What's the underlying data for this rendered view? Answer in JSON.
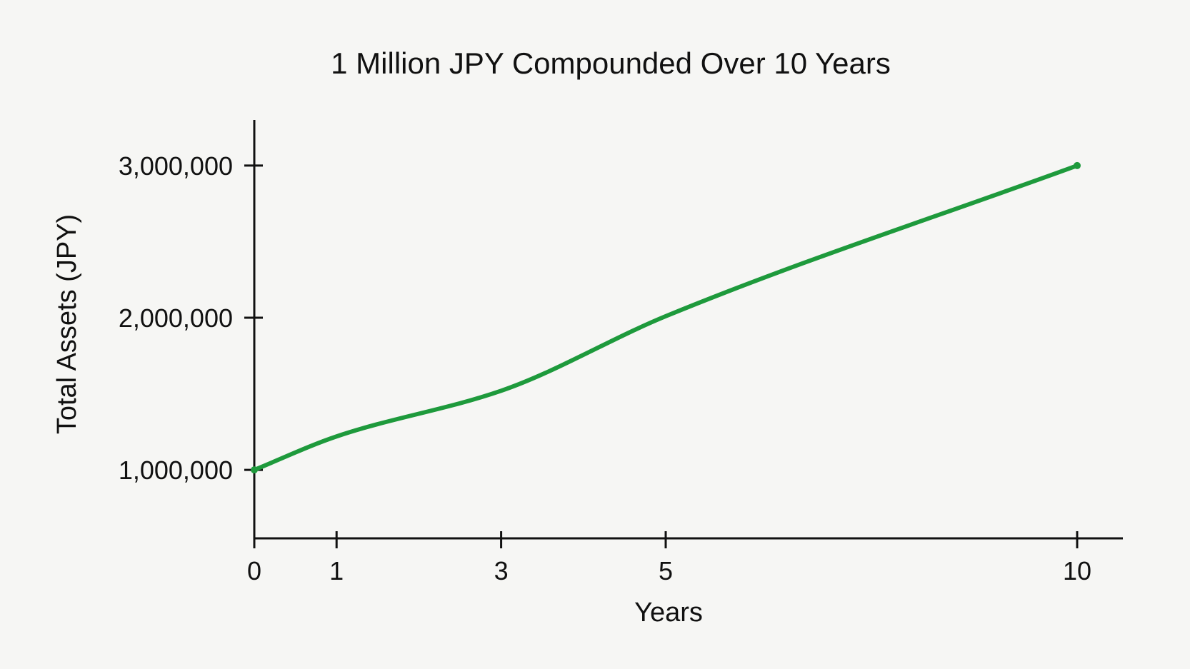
{
  "chart_data": {
    "type": "line",
    "title": "1 Million JPY Compounded Over 10 Years",
    "xlabel": "Years",
    "ylabel": "Total Assets (JPY)",
    "x_ticks": [
      {
        "value": 0,
        "label": "0"
      },
      {
        "value": 1,
        "label": "1"
      },
      {
        "value": 3,
        "label": "3"
      },
      {
        "value": 5,
        "label": "5"
      },
      {
        "value": 10,
        "label": "10"
      }
    ],
    "y_ticks": [
      {
        "value": 1000000,
        "label": "1,000,000"
      },
      {
        "value": 2000000,
        "label": "2,000,000"
      },
      {
        "value": 3000000,
        "label": "3,000,000"
      }
    ],
    "ylim": [
      550000,
      3300000
    ],
    "grid": false,
    "series": [
      {
        "color": "#1e9a3c",
        "points": [
          {
            "x": 0,
            "y": 1000000
          },
          {
            "x": 1,
            "y": 1220000
          },
          {
            "x": 3,
            "y": 1520000
          },
          {
            "x": 5,
            "y": 2010000
          },
          {
            "x": 10,
            "y": 3000000
          }
        ]
      }
    ]
  }
}
